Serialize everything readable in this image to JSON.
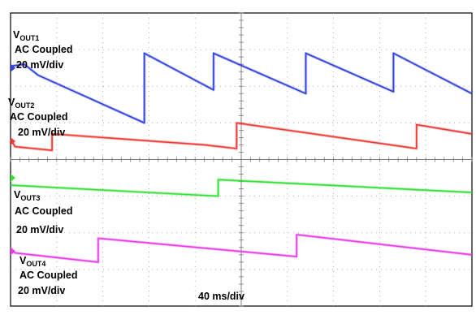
{
  "chart_data": {
    "type": "line",
    "title": "",
    "xlabel": "40 ms/div",
    "x_divisions": 10,
    "y_divisions": 8,
    "grid": true,
    "series": [
      {
        "label_main": "V",
        "label_sub": "OUT1",
        "coupling": "AC Coupled",
        "scale": "20 mV/div",
        "color": "#2f3fe0",
        "marker_div": 6.5,
        "points": [
          [
            0,
            6.55
          ],
          [
            0.3,
            6.6
          ],
          [
            0.6,
            6.3
          ],
          [
            2.9,
            5.0
          ],
          [
            2.9,
            6.9
          ],
          [
            4.4,
            5.9
          ],
          [
            4.4,
            6.9
          ],
          [
            6.4,
            5.8
          ],
          [
            6.4,
            6.9
          ],
          [
            8.3,
            5.85
          ],
          [
            8.3,
            6.9
          ],
          [
            10,
            5.8
          ]
        ]
      },
      {
        "label_main": "V",
        "label_sub": "OUT2",
        "coupling": "AC Coupled",
        "scale": "20 mV/div",
        "color": "#ee3a35",
        "marker_div": 4.5,
        "points": [
          [
            0,
            4.55
          ],
          [
            0.1,
            4.35
          ],
          [
            0.9,
            4.25
          ],
          [
            0.9,
            4.7
          ],
          [
            4.2,
            4.4
          ],
          [
            4.9,
            4.3
          ],
          [
            4.9,
            5.0
          ],
          [
            8.8,
            4.3
          ],
          [
            8.8,
            4.95
          ],
          [
            10,
            4.7
          ]
        ]
      },
      {
        "label_main": "V",
        "label_sub": "OUT3",
        "coupling": "AC Coupled",
        "scale": "20 mV/div",
        "color": "#33e033",
        "marker_div": 3.5,
        "points": [
          [
            0,
            3.3
          ],
          [
            4.5,
            3.0
          ],
          [
            4.5,
            3.45
          ],
          [
            10,
            3.1
          ]
        ]
      },
      {
        "label_main": "V",
        "label_sub": "OUT4",
        "coupling": "AC Coupled",
        "scale": "20 mV/div",
        "color": "#e83be8",
        "marker_div": 1.5,
        "points": [
          [
            0,
            1.55
          ],
          [
            0.1,
            1.45
          ],
          [
            1.9,
            1.2
          ],
          [
            1.9,
            1.85
          ],
          [
            6.2,
            1.35
          ],
          [
            6.2,
            1.95
          ],
          [
            10,
            1.4
          ]
        ]
      }
    ]
  }
}
